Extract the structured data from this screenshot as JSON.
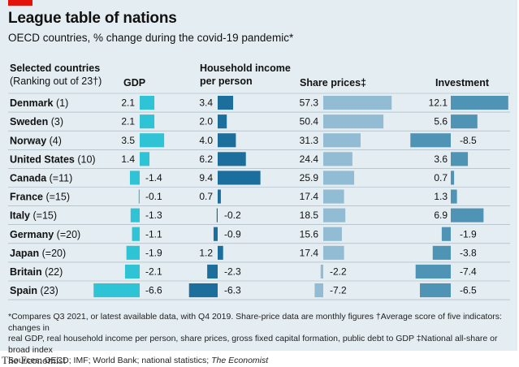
{
  "title": "League table of nations",
  "subtitle": "OECD countries, % change during the covid-19 pandemic*",
  "headers": {
    "countries_line1": "Selected countries",
    "countries_line2": "(Ranking out of 23†)",
    "gdp": "GDP",
    "household_line1": "Household income",
    "household_line2": "per person",
    "share_prices": "Share prices‡",
    "investment": "Investment"
  },
  "footnote": {
    "line1": "*Compares Q3 2021, or latest available data, with Q4 2019. Share-price data are monthly figures  †Average score of five indicators: changes in",
    "line2": "real GDP, real household income per person, share prices, gross fixed capital formation, public debt to GDP  ‡National all-share or broad index",
    "line3": "Sources: OECD; IMF; World Bank; national statistics; ",
    "line3_em": "The Economist"
  },
  "brand": "The Economist",
  "colors": {
    "gdp": "#2ec4d6",
    "household": "#1c6e9c",
    "share_prices": "#92bcd4",
    "investment": "#4f93b5",
    "background": "#e4edf2"
  },
  "chart_data": {
    "type": "table",
    "rows": [
      {
        "country": "Denmark",
        "rank": "(1)",
        "gdp": 2.1,
        "household": 3.4,
        "share_prices": 57.3,
        "investment": 12.1
      },
      {
        "country": "Sweden",
        "rank": "(3)",
        "gdp": 2.1,
        "household": 2.0,
        "share_prices": 50.4,
        "investment": 5.6
      },
      {
        "country": "Norway",
        "rank": "(4)",
        "gdp": 3.5,
        "household": 4.0,
        "share_prices": 31.3,
        "investment": -8.5
      },
      {
        "country": "United States",
        "rank": "(10)",
        "gdp": 1.4,
        "household": 6.2,
        "share_prices": 24.4,
        "investment": 3.6
      },
      {
        "country": "Canada",
        "rank": "(=11)",
        "gdp": -1.4,
        "household": 9.4,
        "share_prices": 25.9,
        "investment": 0.7
      },
      {
        "country": "France",
        "rank": "(=15)",
        "gdp": -0.1,
        "household": 0.7,
        "share_prices": 17.4,
        "investment": 1.3
      },
      {
        "country": "Italy",
        "rank": "(=15)",
        "gdp": -1.3,
        "household": -0.2,
        "share_prices": 18.5,
        "investment": 6.9
      },
      {
        "country": "Germany",
        "rank": "(=20)",
        "gdp": -1.1,
        "household": -0.9,
        "share_prices": 15.6,
        "investment": -1.9
      },
      {
        "country": "Japan",
        "rank": "(=20)",
        "gdp": -1.9,
        "household": 1.2,
        "share_prices": 17.4,
        "investment": -3.8
      },
      {
        "country": "Britain",
        "rank": "(22)",
        "gdp": -2.1,
        "household": -2.3,
        "share_prices": -2.2,
        "investment": -7.4
      },
      {
        "country": "Spain",
        "rank": "(23)",
        "gdp": -6.6,
        "household": -6.3,
        "share_prices": -7.2,
        "investment": -6.5
      }
    ]
  }
}
